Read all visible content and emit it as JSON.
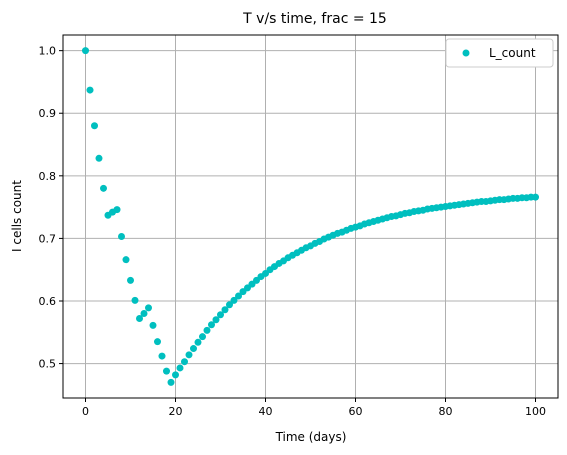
{
  "chart_data": {
    "type": "scatter",
    "title": "T  v/s  time, frac = 15",
    "xlabel": "Time (days)",
    "ylabel": "I cells count",
    "xlim": [
      -5,
      105
    ],
    "ylim": [
      0.445,
      1.025
    ],
    "xticks": [
      0,
      20,
      40,
      60,
      80,
      100
    ],
    "xtick_labels": [
      "0",
      "20",
      "40",
      "60",
      "80",
      "100"
    ],
    "yticks": [
      0.5,
      0.6,
      0.7,
      0.8,
      0.9,
      1.0
    ],
    "ytick_labels": [
      "0.5",
      "0.6",
      "0.7",
      "0.8",
      "0.9",
      "1.0"
    ],
    "grid": true,
    "legend": {
      "position": "top-right"
    },
    "series": [
      {
        "name": "L_count",
        "color": "#00bfbf",
        "marker": "circle",
        "x": [
          0,
          1,
          2,
          3,
          4,
          5,
          6,
          7,
          8,
          9,
          10,
          11,
          12,
          13,
          14,
          15,
          16,
          17,
          18,
          19,
          20,
          21,
          22,
          23,
          24,
          25,
          26,
          27,
          28,
          29,
          30,
          31,
          32,
          33,
          34,
          35,
          36,
          37,
          38,
          39,
          40,
          41,
          42,
          43,
          44,
          45,
          46,
          47,
          48,
          49,
          50,
          51,
          52,
          53,
          54,
          55,
          56,
          57,
          58,
          59,
          60,
          61,
          62,
          63,
          64,
          65,
          66,
          67,
          68,
          69,
          70,
          71,
          72,
          73,
          74,
          75,
          76,
          77,
          78,
          79,
          80,
          81,
          82,
          83,
          84,
          85,
          86,
          87,
          88,
          89,
          90,
          91,
          92,
          93,
          94,
          95,
          96,
          97,
          98,
          99,
          100
        ],
        "y": [
          1.0,
          0.937,
          0.88,
          0.828,
          0.78,
          0.737,
          0.742,
          0.746,
          0.703,
          0.666,
          0.633,
          0.601,
          0.572,
          0.58,
          0.589,
          0.561,
          0.535,
          0.512,
          0.488,
          0.47,
          0.482,
          0.493,
          0.503,
          0.514,
          0.524,
          0.534,
          0.543,
          0.553,
          0.562,
          0.57,
          0.578,
          0.586,
          0.594,
          0.601,
          0.608,
          0.615,
          0.621,
          0.627,
          0.633,
          0.639,
          0.644,
          0.65,
          0.655,
          0.66,
          0.664,
          0.669,
          0.673,
          0.677,
          0.681,
          0.685,
          0.688,
          0.692,
          0.695,
          0.699,
          0.702,
          0.705,
          0.708,
          0.71,
          0.713,
          0.716,
          0.718,
          0.72,
          0.723,
          0.725,
          0.727,
          0.729,
          0.731,
          0.733,
          0.735,
          0.736,
          0.738,
          0.74,
          0.741,
          0.743,
          0.744,
          0.745,
          0.747,
          0.748,
          0.749,
          0.75,
          0.751,
          0.752,
          0.753,
          0.754,
          0.755,
          0.756,
          0.757,
          0.758,
          0.759,
          0.759,
          0.76,
          0.761,
          0.762,
          0.762,
          0.763,
          0.764,
          0.764,
          0.765,
          0.765,
          0.766,
          0.766
        ]
      }
    ]
  }
}
